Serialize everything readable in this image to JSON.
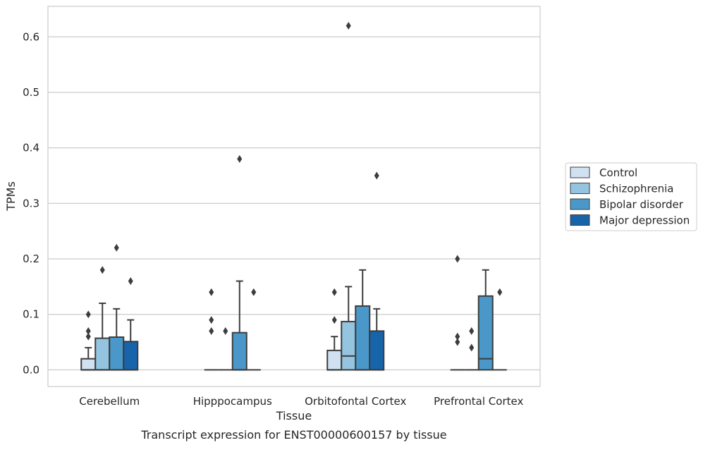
{
  "chart_data": {
    "type": "box",
    "title": "",
    "xlabel": "Tissue",
    "ylabel": "TPMs",
    "caption": "Transcript expression for ENST00000600157 by tissue",
    "ylim": [
      -0.03,
      0.655
    ],
    "yticks": [
      0.0,
      0.1,
      0.2,
      0.3,
      0.4,
      0.5,
      0.6
    ],
    "ytick_labels": [
      "0.0",
      "0.1",
      "0.2",
      "0.3",
      "0.4",
      "0.5",
      "0.6"
    ],
    "grid": "horizontal",
    "legend_placement": "right",
    "categories": [
      "Cerebellum",
      "Hipppocampus",
      "Orbitofontal Cortex",
      "Prefrontal Cortex"
    ],
    "series": [
      {
        "name": "Control",
        "color": "#d0e1f2",
        "boxes": [
          {
            "q1": 0.0,
            "median": 0.0,
            "q3": 0.02,
            "whisker_low": 0.0,
            "whisker_high": 0.04,
            "outliers": [
              0.06,
              0.07,
              0.1
            ]
          },
          {
            "q1": 0.0,
            "median": 0.0,
            "q3": 0.0,
            "whisker_low": 0.0,
            "whisker_high": 0.0,
            "outliers": [
              0.07,
              0.09,
              0.14
            ]
          },
          {
            "q1": 0.0,
            "median": 0.0,
            "q3": 0.035,
            "whisker_low": 0.0,
            "whisker_high": 0.06,
            "outliers": [
              0.09,
              0.14
            ]
          },
          {
            "q1": 0.0,
            "median": 0.0,
            "q3": 0.0,
            "whisker_low": 0.0,
            "whisker_high": 0.0,
            "outliers": [
              0.05,
              0.06,
              0.2
            ]
          }
        ]
      },
      {
        "name": "Schizophrenia",
        "color": "#94c4df",
        "boxes": [
          {
            "q1": 0.0,
            "median": 0.0,
            "q3": 0.057,
            "whisker_low": 0.0,
            "whisker_high": 0.12,
            "outliers": [
              0.18
            ]
          },
          {
            "q1": 0.0,
            "median": 0.0,
            "q3": 0.0,
            "whisker_low": 0.0,
            "whisker_high": 0.0,
            "outliers": [
              0.07
            ]
          },
          {
            "q1": 0.0,
            "median": 0.025,
            "q3": 0.087,
            "whisker_low": 0.0,
            "whisker_high": 0.15,
            "outliers": [
              0.62
            ]
          },
          {
            "q1": 0.0,
            "median": 0.0,
            "q3": 0.0,
            "whisker_low": 0.0,
            "whisker_high": 0.0,
            "outliers": [
              0.04,
              0.07
            ]
          }
        ]
      },
      {
        "name": "Bipolar disorder",
        "color": "#4a98c9",
        "boxes": [
          {
            "q1": 0.0,
            "median": 0.0,
            "q3": 0.059,
            "whisker_low": 0.0,
            "whisker_high": 0.11,
            "outliers": [
              0.22
            ]
          },
          {
            "q1": 0.0,
            "median": 0.0,
            "q3": 0.067,
            "whisker_low": 0.0,
            "whisker_high": 0.16,
            "outliers": [
              0.38
            ]
          },
          {
            "q1": 0.0,
            "median": 0.0,
            "q3": 0.115,
            "whisker_low": 0.0,
            "whisker_high": 0.18,
            "outliers": []
          },
          {
            "q1": 0.0,
            "median": 0.02,
            "q3": 0.133,
            "whisker_low": 0.0,
            "whisker_high": 0.18,
            "outliers": []
          }
        ]
      },
      {
        "name": "Major depression",
        "color": "#1764ab",
        "boxes": [
          {
            "q1": 0.0,
            "median": 0.0,
            "q3": 0.051,
            "whisker_low": 0.0,
            "whisker_high": 0.09,
            "outliers": [
              0.16
            ]
          },
          {
            "q1": 0.0,
            "median": 0.0,
            "q3": 0.0,
            "whisker_low": 0.0,
            "whisker_high": 0.0,
            "outliers": [
              0.14
            ]
          },
          {
            "q1": 0.0,
            "median": 0.0,
            "q3": 0.07,
            "whisker_low": 0.0,
            "whisker_high": 0.11,
            "outliers": [
              0.35
            ]
          },
          {
            "q1": 0.0,
            "median": 0.0,
            "q3": 0.0,
            "whisker_low": 0.0,
            "whisker_high": 0.0,
            "outliers": [
              0.14
            ]
          }
        ]
      }
    ]
  }
}
